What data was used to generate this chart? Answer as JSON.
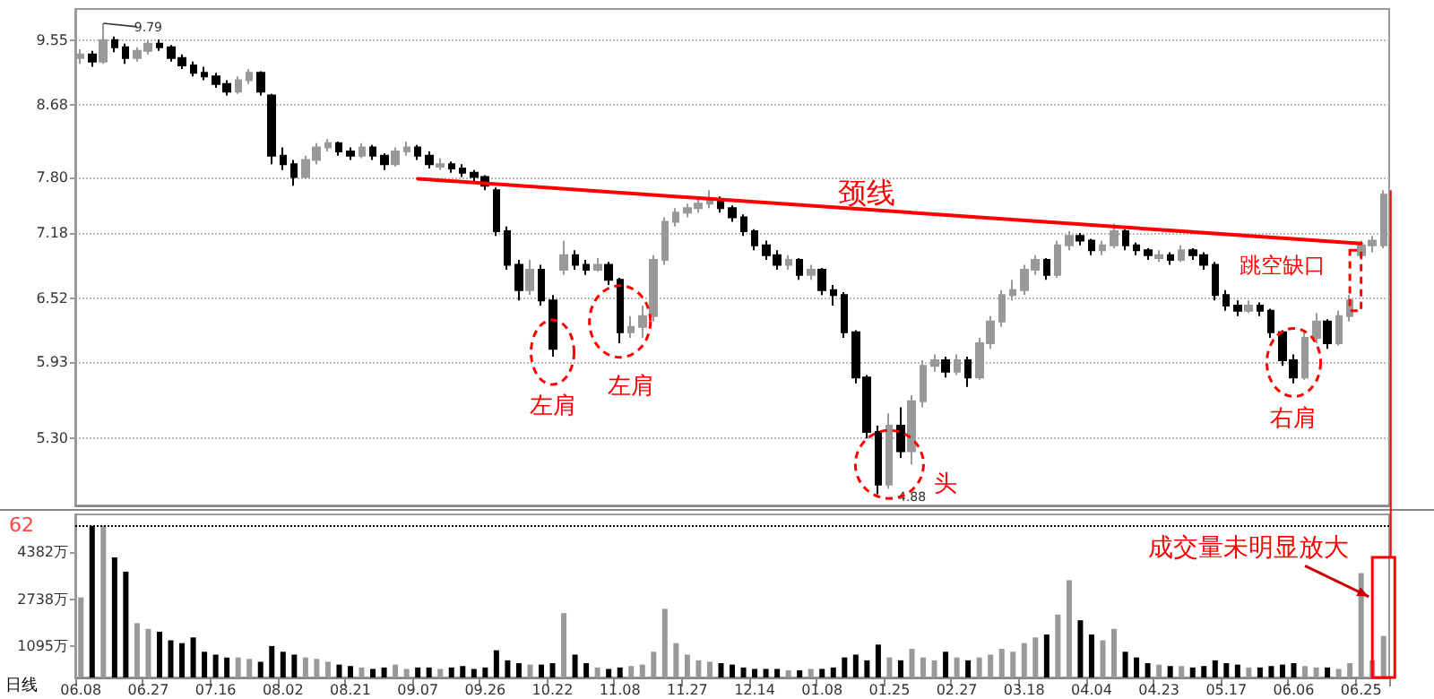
{
  "chart_data": [
    {
      "type": "candlestick",
      "categories": [
        "06.08",
        null,
        null,
        null,
        null,
        null,
        "06.27",
        null,
        null,
        null,
        null,
        null,
        "07.16",
        null,
        null,
        null,
        null,
        null,
        "08.02",
        null,
        null,
        null,
        null,
        null,
        "08.21",
        null,
        null,
        null,
        null,
        null,
        "09.07",
        null,
        null,
        null,
        null,
        null,
        "09.26",
        null,
        null,
        null,
        null,
        null,
        "10.22",
        null,
        null,
        null,
        null,
        null,
        "11.08",
        null,
        null,
        null,
        null,
        null,
        "11.27",
        null,
        null,
        null,
        null,
        null,
        "12.14",
        null,
        null,
        null,
        null,
        null,
        "01.08",
        null,
        null,
        null,
        null,
        null,
        "01.25",
        null,
        null,
        null,
        null,
        null,
        "02.27",
        null,
        null,
        null,
        null,
        null,
        "03.18",
        null,
        null,
        null,
        null,
        null,
        "04.04",
        null,
        null,
        null,
        null,
        null,
        "04.23",
        null,
        null,
        null,
        null,
        null,
        "05.17",
        null,
        null,
        null,
        null,
        null,
        "06.06",
        null,
        null,
        null,
        null,
        null,
        "06.25",
        null,
        null
      ],
      "ohlc": [
        [
          9.3,
          9.42,
          9.22,
          9.35
        ],
        [
          9.35,
          9.4,
          9.18,
          9.25
        ],
        [
          9.25,
          9.79,
          9.22,
          9.55
        ],
        [
          9.55,
          9.6,
          9.38,
          9.45
        ],
        [
          9.45,
          9.5,
          9.22,
          9.3
        ],
        [
          9.3,
          9.45,
          9.25,
          9.4
        ],
        [
          9.4,
          9.55,
          9.35,
          9.5
        ],
        [
          9.5,
          9.56,
          9.4,
          9.45
        ],
        [
          9.45,
          9.48,
          9.25,
          9.3
        ],
        [
          9.3,
          9.35,
          9.15,
          9.2
        ],
        [
          9.2,
          9.25,
          9.05,
          9.1
        ],
        [
          9.1,
          9.18,
          9.0,
          9.05
        ],
        [
          9.05,
          9.1,
          8.9,
          8.95
        ],
        [
          8.95,
          9.0,
          8.8,
          8.85
        ],
        [
          8.85,
          9.05,
          8.82,
          9.0
        ],
        [
          9.0,
          9.15,
          8.95,
          9.1
        ],
        [
          9.1,
          9.12,
          8.8,
          8.85
        ],
        [
          8.8,
          8.82,
          7.95,
          8.05
        ],
        [
          8.05,
          8.15,
          7.88,
          7.95
        ],
        [
          7.95,
          8.0,
          7.7,
          7.8
        ],
        [
          7.8,
          8.05,
          7.78,
          8.0
        ],
        [
          8.0,
          8.2,
          7.95,
          8.15
        ],
        [
          8.15,
          8.25,
          8.1,
          8.2
        ],
        [
          8.2,
          8.22,
          8.05,
          8.1
        ],
        [
          8.1,
          8.15,
          8.0,
          8.05
        ],
        [
          8.05,
          8.2,
          8.02,
          8.15
        ],
        [
          8.15,
          8.18,
          8.0,
          8.05
        ],
        [
          8.05,
          8.08,
          7.88,
          7.95
        ],
        [
          7.95,
          8.15,
          7.92,
          8.1
        ],
        [
          8.1,
          8.22,
          8.05,
          8.15
        ],
        [
          8.15,
          8.18,
          8.0,
          8.05
        ],
        [
          8.05,
          8.1,
          7.9,
          7.95
        ],
        [
          7.92,
          8.02,
          7.88,
          7.95
        ],
        [
          7.95,
          7.98,
          7.85,
          7.9
        ],
        [
          7.9,
          7.95,
          7.8,
          7.85
        ],
        [
          7.85,
          7.88,
          7.75,
          7.8
        ],
        [
          7.8,
          7.82,
          7.65,
          7.7
        ],
        [
          7.65,
          7.68,
          7.15,
          7.2
        ],
        [
          7.2,
          7.25,
          6.8,
          6.85
        ],
        [
          6.85,
          6.9,
          6.5,
          6.6
        ],
        [
          6.6,
          6.9,
          6.55,
          6.8
        ],
        [
          6.8,
          6.85,
          6.45,
          6.5
        ],
        [
          6.5,
          6.55,
          5.98,
          6.05
        ],
        [
          6.8,
          7.1,
          6.75,
          6.95
        ],
        [
          6.95,
          7.0,
          6.8,
          6.85
        ],
        [
          6.85,
          6.9,
          6.75,
          6.8
        ],
        [
          6.8,
          6.92,
          6.78,
          6.85
        ],
        [
          6.85,
          6.88,
          6.65,
          6.7
        ],
        [
          6.7,
          6.72,
          6.1,
          6.2
        ],
        [
          6.2,
          6.35,
          6.15,
          6.25
        ],
        [
          6.25,
          6.45,
          6.15,
          6.35
        ],
        [
          6.35,
          6.95,
          6.3,
          6.9
        ],
        [
          6.9,
          7.35,
          6.85,
          7.3
        ],
        [
          7.3,
          7.45,
          7.25,
          7.4
        ],
        [
          7.4,
          7.5,
          7.35,
          7.45
        ],
        [
          7.45,
          7.55,
          7.4,
          7.5
        ],
        [
          7.5,
          7.65,
          7.45,
          7.55
        ],
        [
          7.55,
          7.58,
          7.4,
          7.45
        ],
        [
          7.45,
          7.48,
          7.3,
          7.35
        ],
        [
          7.35,
          7.38,
          7.15,
          7.2
        ],
        [
          7.2,
          7.22,
          7.0,
          7.05
        ],
        [
          7.05,
          7.1,
          6.9,
          6.95
        ],
        [
          6.95,
          7.0,
          6.8,
          6.85
        ],
        [
          6.85,
          6.95,
          6.8,
          6.9
        ],
        [
          6.9,
          6.92,
          6.7,
          6.75
        ],
        [
          6.75,
          6.85,
          6.7,
          6.8
        ],
        [
          6.8,
          6.82,
          6.55,
          6.6
        ],
        [
          6.6,
          6.65,
          6.45,
          6.55
        ],
        [
          6.55,
          6.58,
          6.15,
          6.2
        ],
        [
          6.2,
          6.22,
          5.75,
          5.8
        ],
        [
          5.8,
          5.82,
          5.3,
          5.35
        ],
        [
          5.35,
          5.4,
          4.88,
          4.95
        ],
        [
          4.95,
          5.5,
          4.92,
          5.4
        ],
        [
          5.4,
          5.55,
          5.15,
          5.2
        ],
        [
          5.2,
          5.65,
          5.1,
          5.6
        ],
        [
          5.6,
          5.95,
          5.55,
          5.9
        ],
        [
          5.9,
          6.0,
          5.85,
          5.95
        ],
        [
          5.95,
          5.98,
          5.8,
          5.85
        ],
        [
          5.85,
          6.0,
          5.82,
          5.95
        ],
        [
          5.95,
          5.98,
          5.72,
          5.8
        ],
        [
          5.8,
          6.15,
          5.78,
          6.1
        ],
        [
          6.1,
          6.35,
          6.05,
          6.3
        ],
        [
          6.3,
          6.6,
          6.25,
          6.55
        ],
        [
          6.55,
          6.7,
          6.5,
          6.6
        ],
        [
          6.6,
          6.85,
          6.55,
          6.8
        ],
        [
          6.8,
          6.95,
          6.75,
          6.9
        ],
        [
          6.9,
          6.92,
          6.7,
          6.75
        ],
        [
          6.75,
          7.1,
          6.72,
          7.05
        ],
        [
          7.05,
          7.2,
          7.0,
          7.15
        ],
        [
          7.15,
          7.18,
          7.05,
          7.1
        ],
        [
          7.1,
          7.12,
          6.95,
          7.0
        ],
        [
          7.0,
          7.1,
          6.95,
          7.05
        ],
        [
          7.05,
          7.28,
          7.02,
          7.2
        ],
        [
          7.2,
          7.22,
          7.0,
          7.05
        ],
        [
          7.05,
          7.08,
          6.95,
          7.0
        ],
        [
          7.0,
          7.02,
          6.9,
          6.95
        ],
        [
          6.92,
          7.0,
          6.88,
          6.95
        ],
        [
          6.95,
          6.98,
          6.85,
          6.9
        ],
        [
          6.9,
          7.05,
          6.88,
          7.0
        ],
        [
          7.0,
          7.02,
          6.9,
          6.95
        ],
        [
          6.95,
          6.98,
          6.8,
          6.85
        ],
        [
          6.85,
          6.88,
          6.5,
          6.55
        ],
        [
          6.55,
          6.6,
          6.4,
          6.45
        ],
        [
          6.45,
          6.5,
          6.35,
          6.4
        ],
        [
          6.4,
          6.5,
          6.38,
          6.45
        ],
        [
          6.45,
          6.48,
          6.35,
          6.4
        ],
        [
          6.4,
          6.42,
          6.15,
          6.2
        ],
        [
          6.2,
          6.22,
          5.9,
          5.95
        ],
        [
          5.95,
          6.0,
          5.75,
          5.8
        ],
        [
          5.8,
          6.2,
          5.78,
          6.15
        ],
        [
          6.15,
          6.38,
          6.1,
          6.3
        ],
        [
          6.3,
          6.32,
          6.05,
          6.1
        ],
        [
          6.1,
          6.4,
          6.08,
          6.35
        ],
        [
          6.35,
          6.55,
          6.3,
          6.5
        ],
        [
          6.95,
          7.1,
          6.9,
          7.05
        ],
        [
          7.05,
          7.15,
          6.98,
          7.1
        ],
        [
          7.05,
          7.65,
          7.02,
          7.6
        ]
      ],
      "colors": [
        "#999999",
        "#000000",
        "#999999",
        "#000000",
        "#000000",
        "#999999",
        "#999999",
        "#000000",
        "#000000",
        "#000000",
        "#000000",
        "#000000",
        "#000000",
        "#000000",
        "#999999",
        "#999999",
        "#000000",
        "#000000",
        "#000000",
        "#000000",
        "#999999",
        "#999999",
        "#999999",
        "#000000",
        "#000000",
        "#999999",
        "#000000",
        "#000000",
        "#999999",
        "#999999",
        "#000000",
        "#000000",
        "#999999",
        "#000000",
        "#000000",
        "#000000",
        "#000000",
        "#000000",
        "#000000",
        "#000000",
        "#999999",
        "#000000",
        "#000000",
        "#999999",
        "#000000",
        "#000000",
        "#999999",
        "#000000",
        "#000000",
        "#999999",
        "#999999",
        "#999999",
        "#999999",
        "#999999",
        "#999999",
        "#999999",
        "#999999",
        "#000000",
        "#000000",
        "#000000",
        "#000000",
        "#000000",
        "#000000",
        "#999999",
        "#000000",
        "#999999",
        "#000000",
        "#000000",
        "#000000",
        "#000000",
        "#000000",
        "#000000",
        "#999999",
        "#000000",
        "#999999",
        "#999999",
        "#999999",
        "#000000",
        "#999999",
        "#000000",
        "#999999",
        "#999999",
        "#999999",
        "#999999",
        "#999999",
        "#999999",
        "#000000",
        "#999999",
        "#999999",
        "#000000",
        "#000000",
        "#999999",
        "#999999",
        "#000000",
        "#000000",
        "#000000",
        "#999999",
        "#000000",
        "#999999",
        "#000000",
        "#000000",
        "#000000",
        "#000000",
        "#000000",
        "#999999",
        "#000000",
        "#000000",
        "#000000",
        "#000000",
        "#999999",
        "#999999",
        "#000000",
        "#999999",
        "#999999",
        "#999999",
        "#999999",
        "#999999"
      ],
      "series": [
        {
          "type": "line",
          "name": "颈线",
          "color": "#ff0000",
          "x": [
            "09.07",
            "06.25"
          ],
          "values": [
            7.78,
            7.07
          ]
        }
      ],
      "log": true,
      "ylim": [
        4.8,
        10.0
      ],
      "yticks": [
        {
          "value": 5.3,
          "label": "5.30"
        },
        5.93,
        6.52,
        7.18,
        {
          "value": 7.8,
          "label": "7.80"
        },
        8.68,
        9.55
      ],
      "grid": "y",
      "tick_labels": "y",
      "legend": false,
      "annotations": [
        "左肩",
        "左肩",
        "头",
        "右肩",
        "跳空缺口",
        "9.79",
        "4.88"
      ]
    },
    {
      "type": "bar",
      "categories": [
        "06.08",
        null,
        null,
        null,
        null,
        null,
        "06.27",
        null,
        null,
        null,
        null,
        null,
        "07.16",
        null,
        null,
        null,
        null,
        null,
        "08.02",
        null,
        null,
        null,
        null,
        null,
        "08.21",
        null,
        null,
        null,
        null,
        null,
        "09.07",
        null,
        null,
        null,
        null,
        null,
        "09.26",
        null,
        null,
        null,
        null,
        null,
        "10.22",
        null,
        null,
        null,
        null,
        null,
        "11.08",
        null,
        null,
        null,
        null,
        null,
        "11.27",
        null,
        null,
        null,
        null,
        null,
        "12.14",
        null,
        null,
        null,
        null,
        null,
        "01.08",
        null,
        null,
        null,
        null,
        null,
        "01.25",
        null,
        null,
        null,
        null,
        null,
        "02.27",
        null,
        null,
        null,
        null,
        null,
        "03.18",
        null,
        null,
        null,
        null,
        null,
        "04.04",
        null,
        null,
        null,
        null,
        null,
        "04.23",
        null,
        null,
        null,
        null,
        null,
        "05.17",
        null,
        null,
        null,
        null,
        null,
        "06.06",
        null,
        null,
        null,
        null,
        null,
        "06.25",
        null,
        null
      ],
      "values": [
        2800,
        5300,
        5300,
        4200,
        3700,
        1900,
        1700,
        1600,
        1300,
        1200,
        1400,
        900,
        800,
        700,
        700,
        650,
        550,
        1100,
        900,
        800,
        700,
        650,
        550,
        450,
        400,
        350,
        300,
        350,
        450,
        300,
        350,
        350,
        300,
        350,
        400,
        300,
        350,
        950,
        600,
        500,
        450,
        450,
        500,
        2250,
        800,
        500,
        350,
        300,
        350,
        400,
        450,
        900,
        2400,
        1200,
        800,
        600,
        550,
        500,
        450,
        350,
        300,
        300,
        300,
        250,
        250,
        300,
        300,
        350,
        700,
        800,
        600,
        1150,
        700,
        600,
        1000,
        700,
        600,
        900,
        700,
        600,
        700,
        800,
        1000,
        900,
        1200,
        1400,
        1500,
        2200,
        3400,
        2000,
        1500,
        1300,
        1700,
        900,
        700,
        500,
        450,
        400,
        400,
        350,
        400,
        600,
        500,
        450,
        350,
        350,
        400,
        450,
        500,
        400,
        350,
        350,
        300,
        500,
        3650,
        600,
        1450
      ],
      "colors": [
        "#999999",
        "#000000",
        "#999999",
        "#000000",
        "#000000",
        "#999999",
        "#999999",
        "#000000",
        "#000000",
        "#000000",
        "#000000",
        "#000000",
        "#000000",
        "#000000",
        "#999999",
        "#999999",
        "#000000",
        "#000000",
        "#000000",
        "#000000",
        "#999999",
        "#999999",
        "#999999",
        "#000000",
        "#000000",
        "#999999",
        "#000000",
        "#000000",
        "#999999",
        "#999999",
        "#000000",
        "#000000",
        "#999999",
        "#000000",
        "#000000",
        "#000000",
        "#000000",
        "#000000",
        "#000000",
        "#000000",
        "#999999",
        "#000000",
        "#000000",
        "#999999",
        "#000000",
        "#000000",
        "#999999",
        "#000000",
        "#000000",
        "#999999",
        "#999999",
        "#999999",
        "#999999",
        "#999999",
        "#999999",
        "#999999",
        "#999999",
        "#000000",
        "#000000",
        "#000000",
        "#000000",
        "#000000",
        "#000000",
        "#999999",
        "#000000",
        "#999999",
        "#000000",
        "#000000",
        "#000000",
        "#000000",
        "#000000",
        "#000000",
        "#999999",
        "#000000",
        "#999999",
        "#999999",
        "#999999",
        "#000000",
        "#999999",
        "#000000",
        "#999999",
        "#999999",
        "#999999",
        "#999999",
        "#999999",
        "#999999",
        "#000000",
        "#999999",
        "#999999",
        "#000000",
        "#000000",
        "#999999",
        "#999999",
        "#000000",
        "#000000",
        "#000000",
        "#999999",
        "#000000",
        "#999999",
        "#000000",
        "#000000",
        "#000000",
        "#000000",
        "#000000",
        "#999999",
        "#000000",
        "#000000",
        "#000000",
        "#000000",
        "#999999",
        "#999999",
        "#000000",
        "#999999",
        "#999999",
        "#999999",
        "#999999",
        "#999999"
      ],
      "ylim": [
        0,
        5700
      ],
      "yticks": [
        {
          "value": 1095,
          "label": "1095万"
        },
        {
          "value": 2738,
          "label": "2738万"
        },
        {
          "value": 4382,
          "label": "4382万"
        }
      ],
      "ref_lines": [
        {
          "axis": "y",
          "value": 5300,
          "line_style": "dotted",
          "color": "#000000"
        }
      ],
      "legend": false,
      "annotations": [
        "62",
        "日线",
        "成交量未明显放大"
      ]
    }
  ]
}
